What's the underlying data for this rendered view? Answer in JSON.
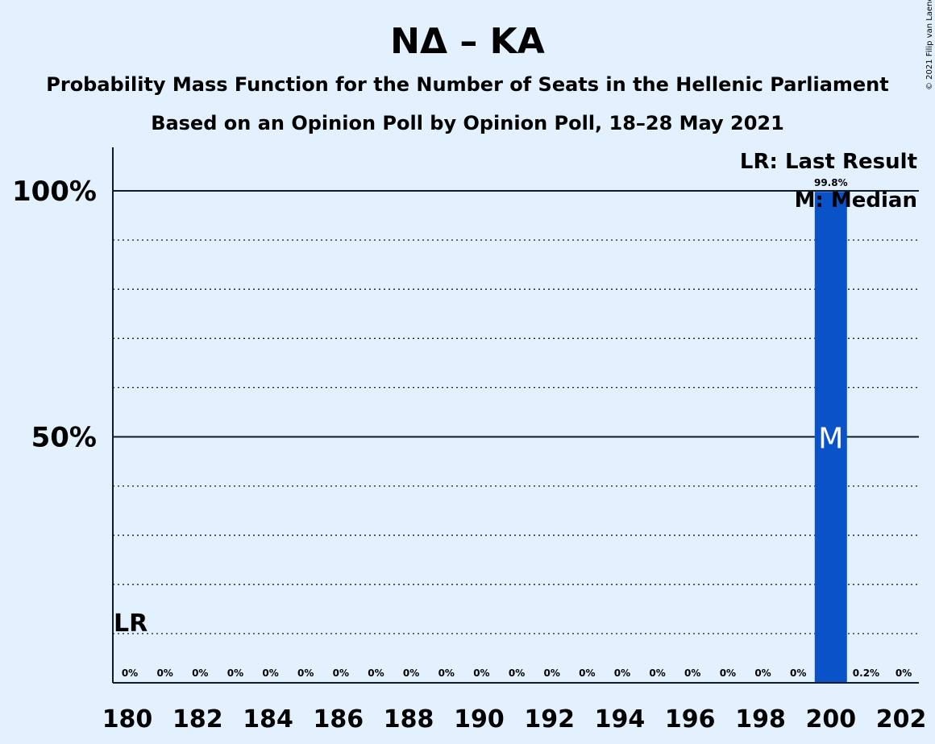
{
  "chart_data": {
    "type": "bar",
    "title": "ΝΔ – ΚΑ",
    "subtitle_1": "Probability Mass Function for the Number of Seats in the Hellenic Parliament",
    "subtitle_2": "Based on an Opinion Poll by Opinion Poll, 18–28 May 2021",
    "copyright": "© 2021 Filip van Laenen",
    "x": [
      180,
      181,
      182,
      183,
      184,
      185,
      186,
      187,
      188,
      189,
      190,
      191,
      192,
      193,
      194,
      195,
      196,
      197,
      198,
      199,
      200,
      201,
      202
    ],
    "values": [
      0,
      0,
      0,
      0,
      0,
      0,
      0,
      0,
      0,
      0,
      0,
      0,
      0,
      0,
      0,
      0,
      0,
      0,
      0,
      0,
      99.8,
      0.2,
      0
    ],
    "value_labels": [
      "0%",
      "0%",
      "0%",
      "0%",
      "0%",
      "0%",
      "0%",
      "0%",
      "0%",
      "0%",
      "0%",
      "0%",
      "0%",
      "0%",
      "0%",
      "0%",
      "0%",
      "0%",
      "0%",
      "0%",
      "99.8%",
      "0.2%",
      "0%"
    ],
    "x_tick_labels": [
      "180",
      "182",
      "184",
      "186",
      "188",
      "190",
      "192",
      "194",
      "196",
      "198",
      "200",
      "202"
    ],
    "y_tick_labels": [
      "50%",
      "100%"
    ],
    "ylim": [
      0,
      100
    ],
    "median_seat": 200,
    "median_label": "M",
    "last_result_seat": 180,
    "last_result_label": "LR",
    "legend": [
      "LR: Last Result",
      "M: Median"
    ],
    "legend_position": "top-right",
    "grid": "dotted every 10%",
    "colors": {
      "bar": "#0a52c7",
      "background": "#e3f0fe",
      "text": "#0d1b2a"
    }
  }
}
